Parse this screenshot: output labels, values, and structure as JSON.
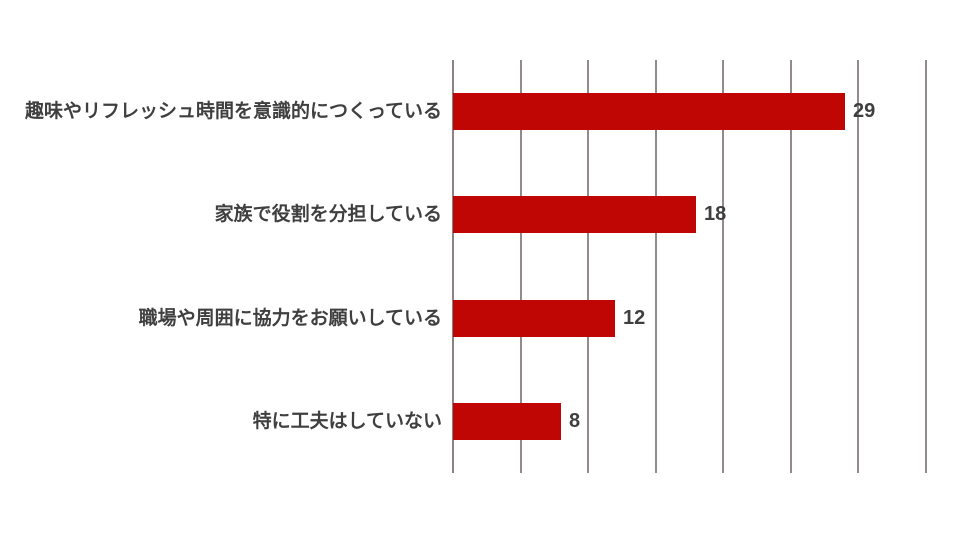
{
  "chart_data": {
    "type": "bar",
    "orientation": "horizontal",
    "title": "",
    "xlabel": "",
    "ylabel": "",
    "categories": [
      "趣味やリフレッシュ時間を意識的につくっている",
      "家族で役割を分担している",
      "職場や周囲に協力をお願いしている",
      "特に工夫はしていない"
    ],
    "values": [
      29,
      18,
      12,
      8
    ],
    "value_labels": [
      "29",
      "18",
      "12",
      "8"
    ],
    "xlim": [
      0,
      35
    ],
    "gridline_step": 5,
    "grid": true,
    "legend": "none",
    "tick_labels_visible": false,
    "colors": {
      "bar": "#c00505",
      "gridline": "#938a8a",
      "text": "#3f3f3f",
      "background": "#ffffff"
    }
  }
}
